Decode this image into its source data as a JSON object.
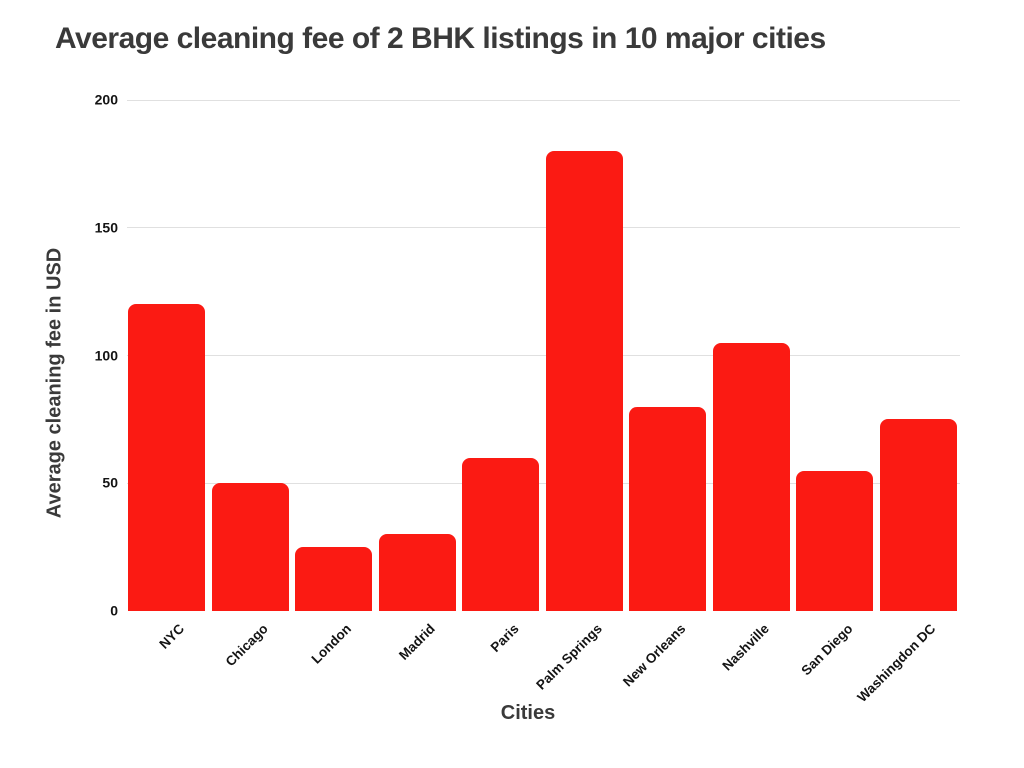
{
  "title": "Average cleaning fee of 2 BHK listings in 10 major cities",
  "chart_data": {
    "type": "bar",
    "title": "Average cleaning fee of 2 BHK listings in 10 major cities",
    "categories": [
      "NYC",
      "Chicago",
      "London",
      "Madrid",
      "Paris",
      "Palm Springs",
      "New Orleans",
      "Nashville",
      "San Diego",
      "Washingdon DC"
    ],
    "values": [
      120,
      50,
      25,
      30,
      60,
      180,
      80,
      105,
      55,
      75
    ],
    "xlabel": "Cities",
    "ylabel": "Average cleaning fee in USD",
    "ylim": [
      0,
      200
    ],
    "yticks": [
      0,
      50,
      100,
      150,
      200
    ],
    "grid": true,
    "legend_position": "none",
    "bar_color": "#fb1a13"
  },
  "colors": {
    "bar": "#fb1a13",
    "heading_text": "#3a3a3a",
    "tick_text": "#141414",
    "gridline": "#e0e0e0",
    "background": "#ffffff"
  }
}
